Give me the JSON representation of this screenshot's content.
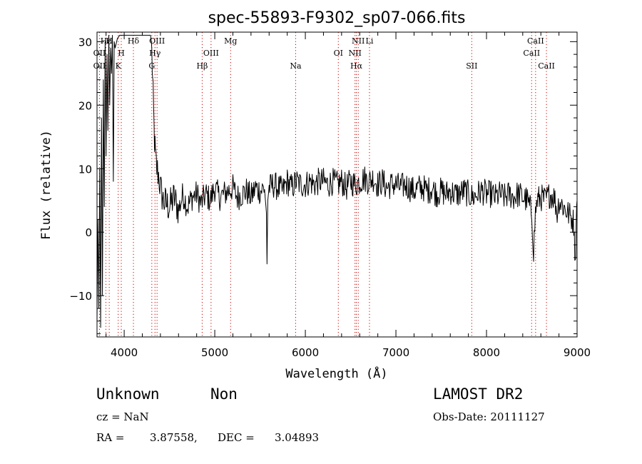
{
  "chart_data": {
    "type": "line",
    "title": "spec-55893-F9302_sp07-066.fits",
    "xlabel": "Wavelength (Å)",
    "ylabel": "Flux (relative)",
    "xlim": [
      3700,
      9000
    ],
    "ylim": [
      -16.5,
      31.5
    ],
    "x_ticks": [
      4000,
      5000,
      6000,
      7000,
      8000,
      9000
    ],
    "x_tick_labels": [
      "4000",
      "5000",
      "6000",
      "7000",
      "8000",
      "9000"
    ],
    "y_ticks": [
      -10,
      0,
      10,
      20,
      30
    ],
    "y_tick_labels": [
      "−10",
      "0",
      "10",
      "20",
      "30"
    ],
    "grid": false,
    "line_color": "#000000",
    "marker_color": "#cc0000",
    "spectral_lines": [
      {
        "label": "OII",
        "x": 3727,
        "row": 1
      },
      {
        "label": "OII",
        "x": 3727,
        "row": 2
      },
      {
        "label": "Hε",
        "x": 3798,
        "row": 0
      },
      {
        "label": "H",
        "x": 3835,
        "row": 0
      },
      {
        "label": "H",
        "x": 3968,
        "row": 1
      },
      {
        "label": "K",
        "x": 3934,
        "row": 2
      },
      {
        "label": "Hδ",
        "x": 4102,
        "row": 0
      },
      {
        "label": "OIII",
        "x": 4363,
        "row": 0
      },
      {
        "label": "Hγ",
        "x": 4340,
        "row": 1
      },
      {
        "label": "G",
        "x": 4305,
        "row": 2
      },
      {
        "label": "Hβ",
        "x": 4861,
        "row": 2
      },
      {
        "label": "OIII",
        "x": 4959,
        "row": 1
      },
      {
        "label": "Mg",
        "x": 5175,
        "row": 0
      },
      {
        "label": "Na",
        "x": 5893,
        "row": 2
      },
      {
        "label": "OI",
        "x": 6364,
        "row": 1
      },
      {
        "label": "NII",
        "x": 6548,
        "row": 1
      },
      {
        "label": "NII",
        "x": 6584,
        "row": 0
      },
      {
        "label": "Hα",
        "x": 6563,
        "row": 2
      },
      {
        "label": "Li",
        "x": 6708,
        "row": 0
      },
      {
        "label": "SII",
        "x": 7837,
        "row": 2
      },
      {
        "label": "CaII",
        "x": 8498,
        "row": 1
      },
      {
        "label": "CaII",
        "x": 8542,
        "row": 0
      },
      {
        "label": "CaII",
        "x": 8662,
        "row": 2
      }
    ],
    "spectrum": {
      "x": [
        3700,
        3710,
        3720,
        3730,
        3740,
        3750,
        3760,
        3770,
        3780,
        3790,
        3800,
        3810,
        3820,
        3830,
        3840,
        3850,
        3860,
        3870,
        3880,
        3890,
        3900,
        3925,
        3950,
        3975,
        4000,
        4050,
        4100,
        4150,
        4200,
        4250,
        4290,
        4300,
        4310,
        4320,
        4330,
        4340,
        4350,
        4360,
        4380,
        4400,
        4430,
        4460,
        4500,
        4550,
        4600,
        4650,
        4700,
        4750,
        4800,
        4850,
        4900,
        4950,
        5000,
        5050,
        5100,
        5150,
        5200,
        5250,
        5300,
        5350,
        5400,
        5450,
        5500,
        5550,
        5570,
        5577,
        5585,
        5600,
        5650,
        5700,
        5750,
        5800,
        5850,
        5900,
        5950,
        6000,
        6050,
        6100,
        6150,
        6200,
        6250,
        6300,
        6350,
        6400,
        6450,
        6500,
        6550,
        6600,
        6650,
        6700,
        6750,
        6800,
        6850,
        6900,
        6950,
        7000,
        7050,
        7100,
        7150,
        7200,
        7250,
        7300,
        7350,
        7400,
        7450,
        7500,
        7550,
        7600,
        7650,
        7700,
        7750,
        7800,
        7850,
        7900,
        7950,
        8000,
        8050,
        8100,
        8150,
        8200,
        8250,
        8300,
        8350,
        8400,
        8450,
        8500,
        8520,
        8540,
        8560,
        8600,
        8650,
        8700,
        8750,
        8780,
        8800,
        8850,
        8900,
        8950,
        8970,
        8980,
        8990,
        9000
      ],
      "y": [
        -14,
        2,
        -12,
        10,
        -15,
        18,
        -10,
        24,
        4,
        30,
        12,
        28,
        16,
        31,
        20,
        29,
        25,
        31,
        8,
        30,
        29,
        30.5,
        31,
        31,
        31,
        31,
        31,
        31,
        31,
        31,
        31,
        30,
        26,
        21,
        16,
        13,
        11,
        10,
        9,
        7,
        5,
        4.5,
        4,
        5.5,
        3.5,
        6,
        4,
        5.5,
        6,
        4.5,
        6,
        5,
        7,
        5.5,
        6,
        6.5,
        7,
        5.5,
        6,
        6.5,
        5.5,
        7,
        6.5,
        7,
        3,
        -5,
        5,
        7,
        7.5,
        7,
        6.5,
        8,
        7,
        8,
        7.5,
        7.5,
        8,
        7.5,
        8,
        8,
        7.5,
        8,
        7.5,
        8,
        7,
        8,
        7.5,
        8,
        8.5,
        8,
        8.5,
        7.5,
        8,
        7,
        7.5,
        7.5,
        7,
        7.5,
        7,
        6.5,
        7,
        7,
        6.5,
        7,
        6,
        6.5,
        6,
        6.5,
        6,
        6,
        6.5,
        6,
        5.5,
        6,
        6.5,
        6,
        6,
        5.5,
        6,
        5.5,
        6,
        5.5,
        6,
        5.5,
        5,
        3,
        -3,
        3,
        5,
        5.5,
        5,
        6,
        5.5,
        3,
        5,
        4,
        3,
        2,
        1,
        -6,
        2,
        5
      ]
    }
  },
  "info": {
    "class_label": "Unknown",
    "subclass_label": "Non",
    "survey": "LAMOST DR2",
    "cz": "cz = NaN",
    "obs_date": "Obs-Date: 20111127",
    "ra_label": "RA =",
    "ra_value": "3.87558,",
    "dec_label": "DEC =",
    "dec_value": "3.04893"
  }
}
